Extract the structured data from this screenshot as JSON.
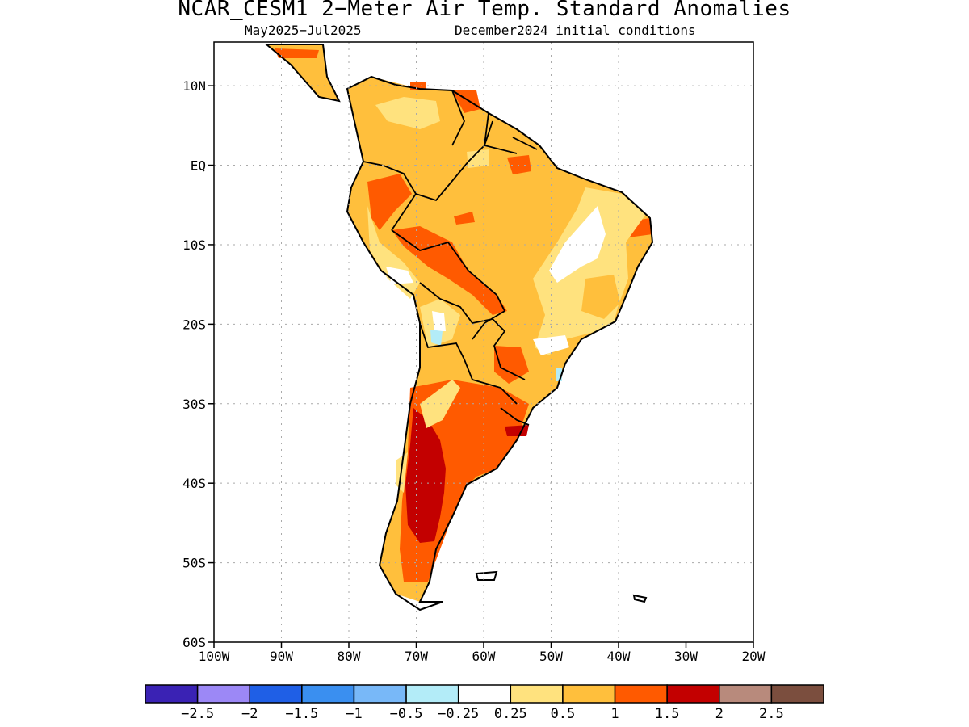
{
  "title": "NCAR_CESM1 2−Meter Air Temp. Standard Anomalies",
  "subtitle_period": "May2025−Jul2025",
  "subtitle_init": "December2024 initial conditions",
  "axes": {
    "lat_labels": [
      "10N",
      "EQ",
      "10S",
      "20S",
      "30S",
      "40S",
      "50S",
      "60S"
    ],
    "lon_labels": [
      "100W",
      "90W",
      "80W",
      "70W",
      "60W",
      "50W",
      "40W",
      "30W",
      "20W"
    ],
    "lat_range": [
      -60,
      15.5
    ],
    "lon_range": [
      -100,
      -20
    ],
    "grid": "dotted"
  },
  "colorbar": {
    "colors": [
      "#3a22b4",
      "#9c88f6",
      "#1f5fe6",
      "#3a8ff0",
      "#78b8f8",
      "#b3ecf8",
      "#ffffff",
      "#ffe27e",
      "#ffbf3c",
      "#ff5a00",
      "#c30000",
      "#b88a7c",
      "#7b4e3e"
    ],
    "labels": [
      "−2.5",
      "−2",
      "−1.5",
      "−1",
      "−0.5",
      "−0.25",
      "0.25",
      "0.5",
      "1",
      "1.5",
      "2",
      "2.5"
    ]
  }
}
